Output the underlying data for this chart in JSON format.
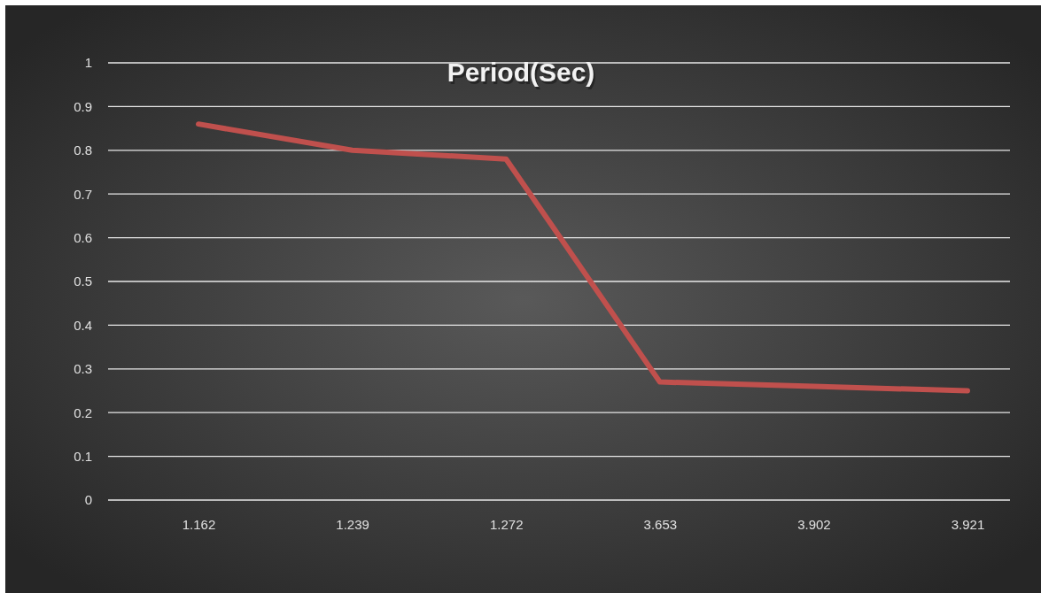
{
  "chart_data": {
    "type": "line",
    "title": "Period(Sec)",
    "categories": [
      "1.162",
      "1.239",
      "1.272",
      "3.653",
      "3.902",
      "3.921"
    ],
    "series": [
      {
        "color": "#c0504d",
        "values": [
          0.86,
          0.8,
          0.78,
          0.27,
          0.26,
          0.25
        ]
      }
    ],
    "ylim": [
      0,
      1
    ],
    "yticks": [
      0,
      0.1,
      0.2,
      0.3,
      0.4,
      0.5,
      0.6,
      0.7,
      0.8,
      0.9,
      1
    ],
    "grid": "y",
    "marker": "none",
    "line_style": "solid"
  }
}
